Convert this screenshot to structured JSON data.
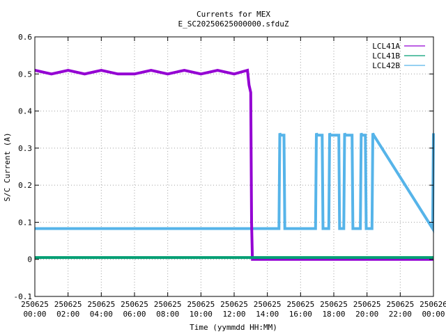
{
  "chart_data": {
    "type": "line",
    "title": "Currents for MEX",
    "subtitle": "E_SC20250625000000.sfduZ",
    "xlabel": "Time (yymmdd HH:MM)",
    "ylabel": "S/C Current (A)",
    "xlim": [
      0,
      24
    ],
    "ylim": [
      -0.1,
      0.6
    ],
    "grid": true,
    "legend_position": "top-right",
    "x_ticks": [
      {
        "value": 0,
        "date": "250625",
        "time": "00:00"
      },
      {
        "value": 2,
        "date": "250625",
        "time": "02:00"
      },
      {
        "value": 4,
        "date": "250625",
        "time": "04:00"
      },
      {
        "value": 6,
        "date": "250625",
        "time": "06:00"
      },
      {
        "value": 8,
        "date": "250625",
        "time": "08:00"
      },
      {
        "value": 10,
        "date": "250625",
        "time": "10:00"
      },
      {
        "value": 12,
        "date": "250625",
        "time": "12:00"
      },
      {
        "value": 14,
        "date": "250625",
        "time": "14:00"
      },
      {
        "value": 16,
        "date": "250625",
        "time": "16:00"
      },
      {
        "value": 18,
        "date": "250625",
        "time": "18:00"
      },
      {
        "value": 20,
        "date": "250625",
        "time": "20:00"
      },
      {
        "value": 22,
        "date": "250625",
        "time": "22:00"
      },
      {
        "value": 24,
        "date": "250626",
        "time": "00:00"
      }
    ],
    "y_ticks": [
      {
        "value": -0.1,
        "label": "-0.1"
      },
      {
        "value": 0,
        "label": "0"
      },
      {
        "value": 0.1,
        "label": "0.1"
      },
      {
        "value": 0.2,
        "label": "0.2"
      },
      {
        "value": 0.3,
        "label": "0.3"
      },
      {
        "value": 0.4,
        "label": "0.4"
      },
      {
        "value": 0.5,
        "label": "0.5"
      },
      {
        "value": 0.6,
        "label": "0.6"
      }
    ],
    "series": [
      {
        "name": "LCL41A",
        "color": "#9400d3",
        "x": [
          0,
          1,
          2,
          3,
          4,
          5,
          6,
          7,
          8,
          9,
          10,
          11,
          12,
          12.8,
          12.9,
          13.0,
          13.05,
          13.1,
          13.2,
          14,
          15,
          16,
          17,
          18,
          19,
          20,
          21,
          22,
          23,
          24
        ],
        "y": [
          0.51,
          0.5,
          0.51,
          0.5,
          0.51,
          0.5,
          0.5,
          0.51,
          0.5,
          0.51,
          0.5,
          0.51,
          0.5,
          0.51,
          0.47,
          0.45,
          0.1,
          0.0,
          0.0,
          0.0,
          0.0,
          0.0,
          0.0,
          0.0,
          0.0,
          0.0,
          0.0,
          0.0,
          0.0,
          0.0
        ]
      },
      {
        "name": "LCL41B",
        "color": "#009e73",
        "x": [
          0,
          2,
          4,
          6,
          8,
          10,
          12,
          14,
          16,
          18,
          20,
          22,
          24
        ],
        "y": [
          0.005,
          0.005,
          0.005,
          0.005,
          0.005,
          0.005,
          0.005,
          0.005,
          0.005,
          0.005,
          0.005,
          0.005,
          0.005
        ]
      },
      {
        "name": "LCL42B",
        "color": "#56b4e9",
        "x": [
          0,
          14.7,
          14.75,
          14.8,
          15.0,
          15.05,
          15.1,
          16.9,
          16.95,
          17.0,
          17.3,
          17.35,
          17.4,
          17.7,
          17.75,
          17.8,
          18.3,
          18.35,
          18.4,
          18.6,
          18.65,
          18.7,
          19.1,
          19.15,
          19.2,
          19.6,
          19.65,
          19.7,
          19.9,
          19.95,
          20.0,
          20.3,
          20.35,
          20.4,
          23.95,
          24.0
        ],
        "y": [
          0.083,
          0.083,
          0.34,
          0.335,
          0.335,
          0.083,
          0.083,
          0.083,
          0.34,
          0.335,
          0.335,
          0.083,
          0.083,
          0.083,
          0.34,
          0.335,
          0.335,
          0.083,
          0.083,
          0.083,
          0.34,
          0.335,
          0.335,
          0.083,
          0.083,
          0.083,
          0.34,
          0.335,
          0.335,
          0.083,
          0.083,
          0.083,
          0.34,
          0.335,
          0.083,
          0.34
        ]
      }
    ]
  }
}
